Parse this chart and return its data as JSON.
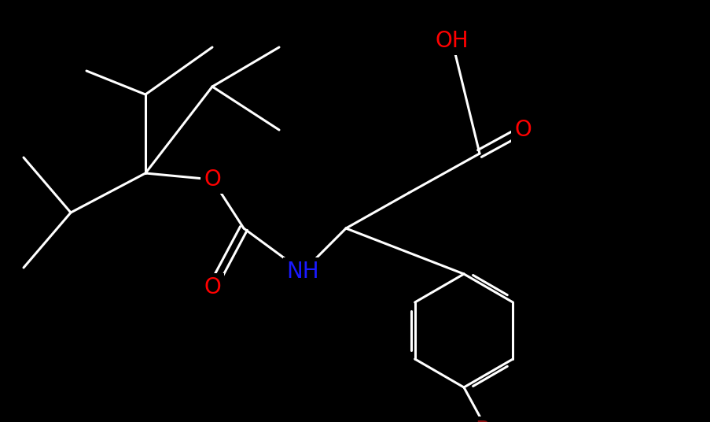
{
  "background_color": "#000000",
  "bond_color": "#ffffff",
  "bond_width": 2.2,
  "lw": 2.2,
  "figsize": [
    9.04,
    5.36
  ],
  "dpi": 100,
  "xlim": [
    0,
    904
  ],
  "ylim": [
    0,
    536
  ],
  "atoms": {
    "OH_color": "#ff0000",
    "O_color": "#ff0000",
    "NH_color": "#1a1aff",
    "Br_color": "#8b1010"
  },
  "font_size": 20
}
